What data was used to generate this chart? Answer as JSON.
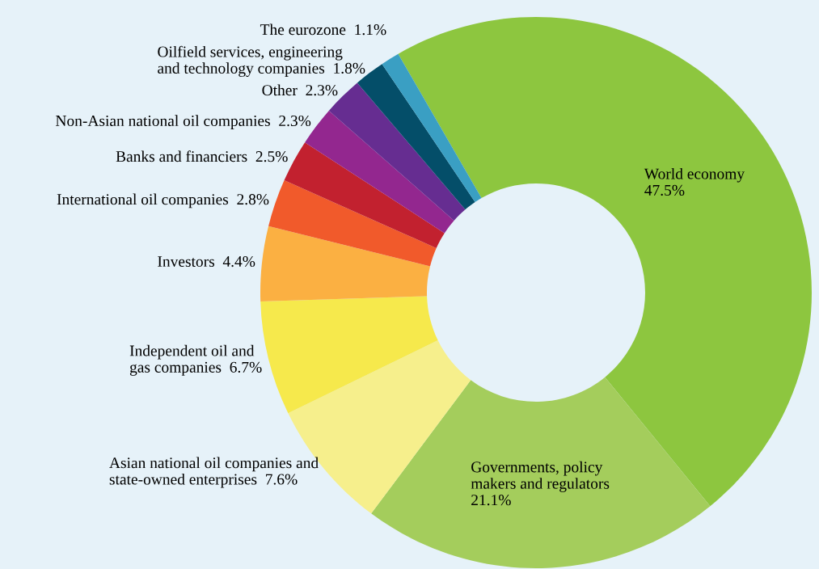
{
  "chart_data": {
    "type": "donut",
    "categories": [
      "World economy",
      "Governments, policy\nmakers and regulators",
      "Asian national oil companies and\nstate-owned enterprises",
      "Independent oil and\ngas companies",
      "Investors",
      "International oil companies",
      "Banks and financiers",
      "Non-Asian national oil companies",
      "Other",
      "Oilfield services, engineering\nand technology companies",
      "The eurozone"
    ],
    "values": [
      47.5,
      21.1,
      7.6,
      6.7,
      4.4,
      2.8,
      2.5,
      2.3,
      2.3,
      1.8,
      1.1
    ],
    "value_labels": [
      "47.5%",
      "21.1%",
      "7.6%",
      "6.7%",
      "4.4%",
      "2.8%",
      "2.5%",
      "2.3%",
      "2.3%",
      "1.8%",
      "1.1%"
    ],
    "colors": [
      "#8dc63f",
      "#a4cd5c",
      "#f6ef8c",
      "#f6e94c",
      "#fbb042",
      "#f15a2b",
      "#c2212f",
      "#93278f",
      "#662d91",
      "#044e69",
      "#3a9fc3"
    ]
  }
}
